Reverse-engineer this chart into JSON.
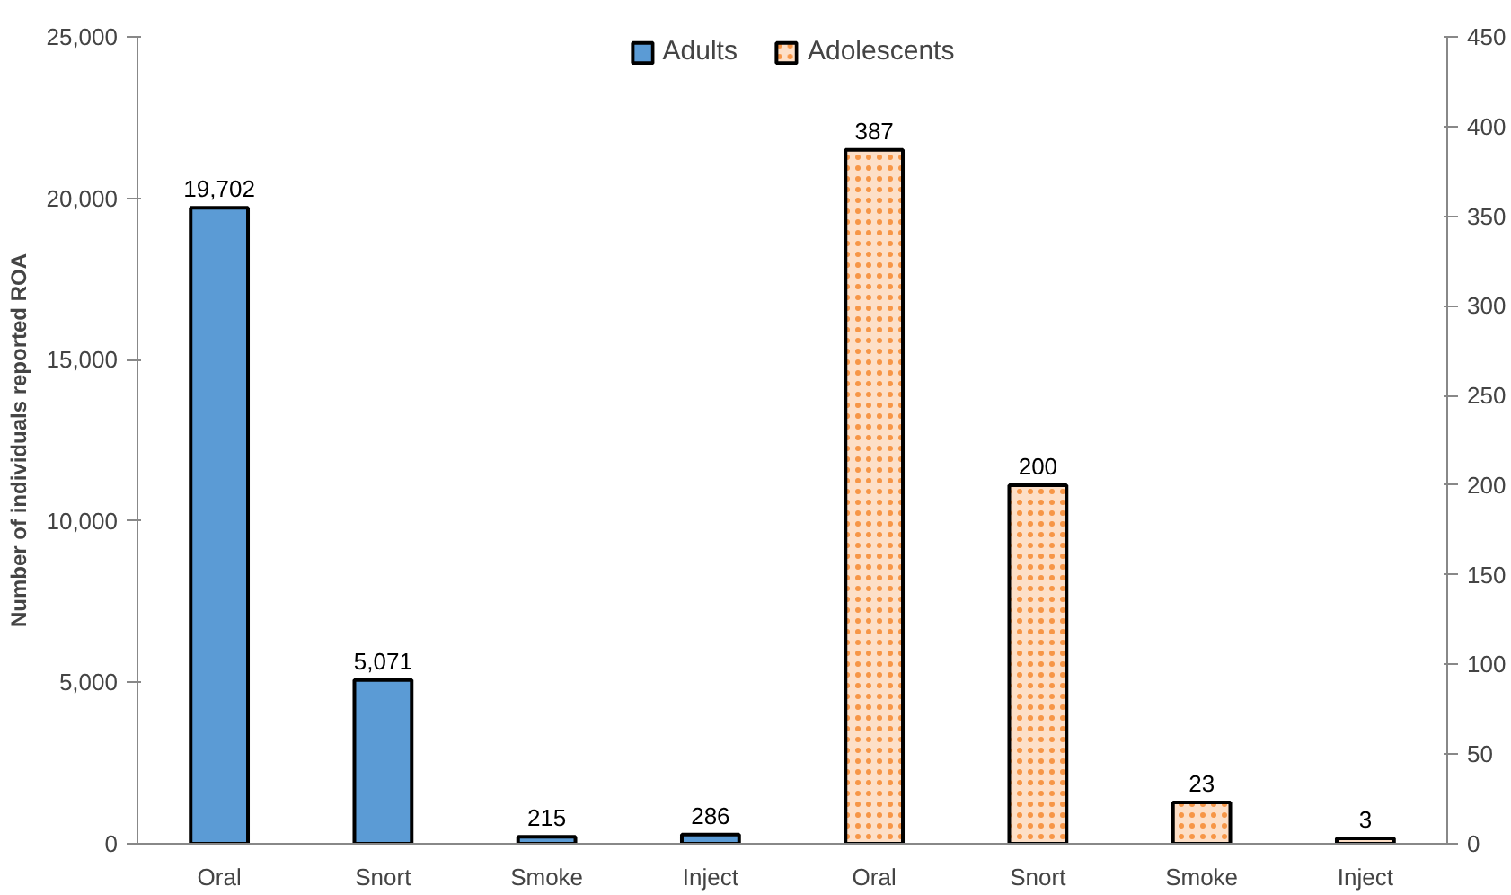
{
  "chart_data": {
    "type": "bar",
    "ylabel": "Number of individuals reported ROA",
    "categories": [
      "Oral",
      "Snort",
      "Smoke",
      "Inject",
      "Oral",
      "Snort",
      "Smoke",
      "Inject"
    ],
    "series": [
      {
        "name": "Adults",
        "color": "#5b9bd5",
        "values": [
          19702,
          5071,
          215,
          286,
          null,
          null,
          null,
          null
        ],
        "value_labels": [
          "19,702",
          "5,071",
          "215",
          "286",
          null,
          null,
          null,
          null
        ]
      },
      {
        "name": "Adolescents",
        "color": "#f79646",
        "axis": "y2",
        "values": [
          null,
          null,
          null,
          null,
          387,
          200,
          23,
          3
        ],
        "value_labels": [
          null,
          null,
          null,
          null,
          "387",
          "200",
          "23",
          "3"
        ]
      }
    ],
    "ylim": [
      0,
      25000
    ],
    "yticks": [
      {
        "value": 0,
        "label": "0"
      },
      {
        "value": 5000,
        "label": "5,000"
      },
      {
        "value": 10000,
        "label": "10,000"
      },
      {
        "value": 15000,
        "label": "15,000"
      },
      {
        "value": 20000,
        "label": "20,000"
      },
      {
        "value": 25000,
        "label": "25,000"
      }
    ],
    "y2lim": [
      0,
      450
    ],
    "y2ticks": [
      0,
      50,
      100,
      150,
      200,
      250,
      300,
      350,
      400,
      450
    ],
    "legend": "top",
    "grid": false
  }
}
